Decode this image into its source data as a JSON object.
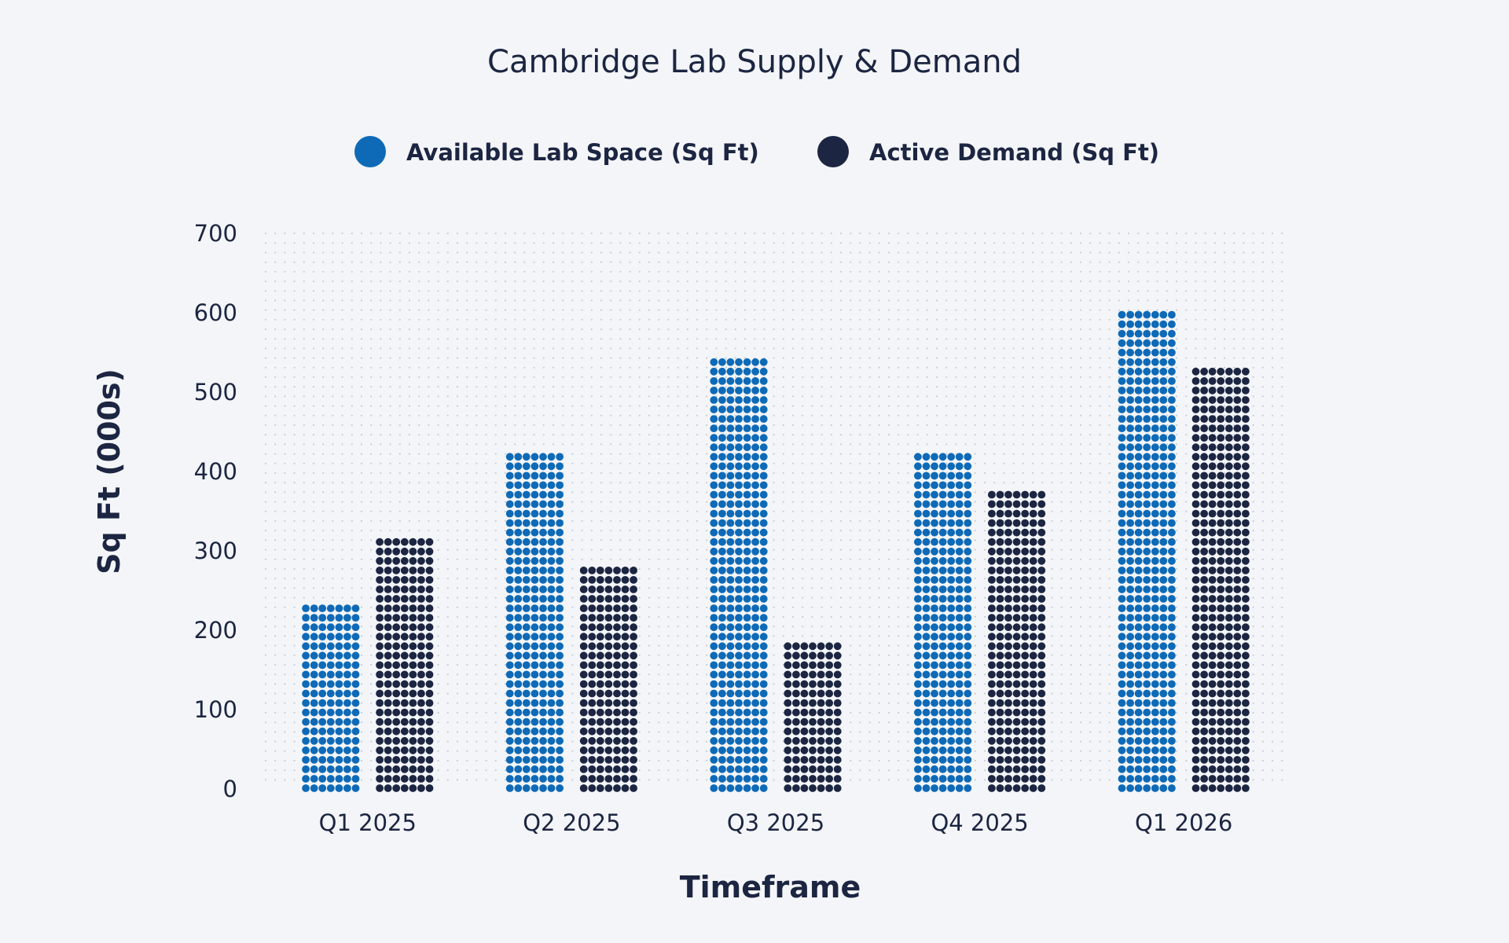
{
  "chart_data": {
    "type": "bar",
    "title": "Cambridge Lab Supply & Demand",
    "xlabel": "Timeframe",
    "ylabel": "Sq Ft (000s)",
    "categories": [
      "Q1 2025",
      "Q2 2025",
      "Q3 2025",
      "Q4 2025",
      "Q1 2026"
    ],
    "series": [
      {
        "name": "Available Lab Space (Sq Ft)",
        "values": [
          240,
          425,
          550,
          425,
          612
        ],
        "color": "#0e6ab7"
      },
      {
        "name": "Active Demand (Sq Ft)",
        "values": [
          318,
          287,
          195,
          380,
          535
        ],
        "color": "#1c2541"
      }
    ],
    "yticks": [
      "0",
      "100",
      "200",
      "300",
      "400",
      "500",
      "600",
      "700"
    ],
    "ylim": [
      0,
      700
    ],
    "legend_position": "top-center",
    "grid": true,
    "grid_style": "dotted",
    "bar_style": "dot-matrix"
  }
}
